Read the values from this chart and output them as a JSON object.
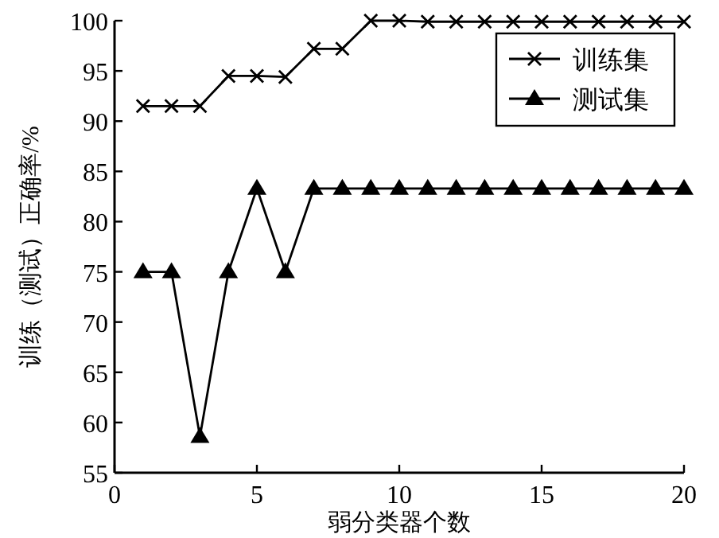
{
  "chart_data": {
    "type": "line",
    "xlabel": "弱分类器个数",
    "ylabel": "训练（测试）正确率/%",
    "x": [
      1,
      2,
      3,
      4,
      5,
      6,
      7,
      8,
      9,
      10,
      11,
      12,
      13,
      14,
      15,
      16,
      17,
      18,
      19,
      20
    ],
    "series": [
      {
        "name": "训练集",
        "color": "#000000",
        "marker": "cross",
        "values": [
          91.5,
          91.5,
          91.5,
          94.5,
          94.5,
          94.4,
          97.2,
          97.2,
          100,
          100,
          99.9,
          99.9,
          99.9,
          99.9,
          99.9,
          99.9,
          99.9,
          99.9,
          99.9,
          99.9
        ]
      },
      {
        "name": "测试集",
        "color": "#000000",
        "marker": "triangle",
        "values": [
          75,
          75,
          58.6,
          75,
          83.3,
          75,
          83.3,
          83.3,
          83.3,
          83.3,
          83.3,
          83.3,
          83.3,
          83.3,
          83.3,
          83.3,
          83.3,
          83.3,
          83.3,
          83.3
        ]
      }
    ],
    "xlim": [
      0,
      20
    ],
    "ylim": [
      55,
      100
    ],
    "xticks": [
      0,
      5,
      10,
      15,
      20
    ],
    "yticks": [
      55,
      60,
      65,
      70,
      75,
      80,
      85,
      90,
      95,
      100
    ],
    "legend": "top right",
    "grid": false,
    "line_style": "solid"
  }
}
